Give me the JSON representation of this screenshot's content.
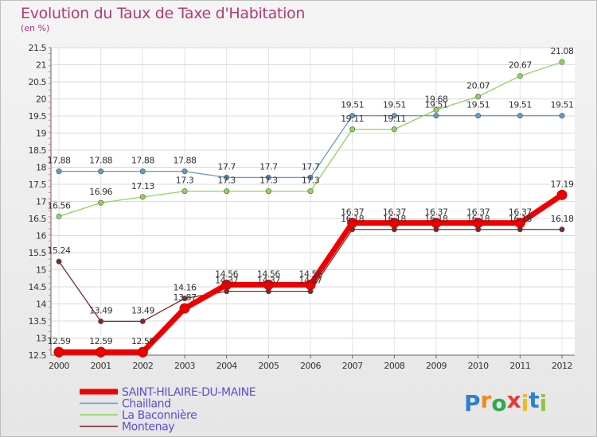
{
  "chart_data": {
    "type": "line",
    "title": "Evolution du Taux de Taxe d'Habitation",
    "subtitle": "(en %)",
    "xlabel": "",
    "ylabel": "",
    "categories": [
      "2000",
      "2001",
      "2002",
      "2003",
      "2004",
      "2005",
      "2006",
      "2007",
      "2008",
      "2009",
      "2010",
      "2011",
      "2012"
    ],
    "ylim": [
      12.5,
      21.5
    ],
    "yticks": [
      "12.5",
      "13",
      "13.5",
      "14",
      "14.5",
      "15",
      "15.5",
      "16",
      "16.5",
      "17",
      "17.5",
      "18",
      "18.5",
      "19",
      "19.5",
      "20",
      "20.5",
      "21",
      "21.5"
    ],
    "grid": true,
    "legend_position": "bottom-left",
    "series": [
      {
        "name": "SAINT-HILAIRE-DU-MAINE",
        "color": "#ee0000",
        "values": [
          12.59,
          12.59,
          12.59,
          13.87,
          14.56,
          14.56,
          14.56,
          16.37,
          16.37,
          16.37,
          16.37,
          16.37,
          17.19
        ],
        "labels": [
          "12.59",
          "12.59",
          "12.59",
          "13.87",
          "14.56",
          "14.56",
          "14.56",
          "16.37",
          "16.37",
          "16.37",
          "16.37",
          "16.37",
          "17.19"
        ]
      },
      {
        "name": "Chailland",
        "color": "#5e9cc8",
        "values": [
          17.88,
          17.88,
          17.88,
          17.88,
          17.7,
          17.7,
          17.7,
          19.51,
          19.51,
          19.51,
          19.51,
          19.51,
          19.51
        ],
        "labels": [
          "17.88",
          "17.88",
          "17.88",
          "17.88",
          "17.7",
          "17.7",
          "17.7",
          "19.51",
          "19.51",
          "19.51",
          "19.51",
          "19.51",
          "19.51"
        ]
      },
      {
        "name": "La Baconnière",
        "color": "#8fd45a",
        "values": [
          16.56,
          16.96,
          17.13,
          17.3,
          17.3,
          17.3,
          17.3,
          19.11,
          19.11,
          19.68,
          20.07,
          20.67,
          21.08
        ],
        "labels": [
          "16.56",
          "16.96",
          "17.13",
          "17.3",
          "17.3",
          "17.3",
          "17.3",
          "19.11",
          "19.11",
          "19.68",
          "20.07",
          "20.67",
          "21.08"
        ]
      },
      {
        "name": "Montenay",
        "color": "#7a2a2a",
        "values": [
          15.24,
          13.49,
          13.49,
          14.16,
          14.37,
          14.37,
          14.37,
          16.18,
          16.18,
          16.18,
          16.18,
          16.18,
          16.18
        ],
        "labels": [
          "15.24",
          "13.49",
          "13.49",
          "14.16",
          "14.37",
          "14.37",
          "14.37",
          "16.18",
          "16.18",
          "16.18",
          "16.18",
          "16.18",
          "16.18"
        ]
      }
    ]
  },
  "logo": {
    "letters": [
      "P",
      "r",
      "o",
      "x",
      "i",
      "t",
      "i"
    ],
    "colors": [
      "#2f7fd1",
      "#f08a1c",
      "#2fa84f",
      "#e23b3b",
      "#f0b81c",
      "#2f7fd1",
      "#8fc63d"
    ]
  }
}
